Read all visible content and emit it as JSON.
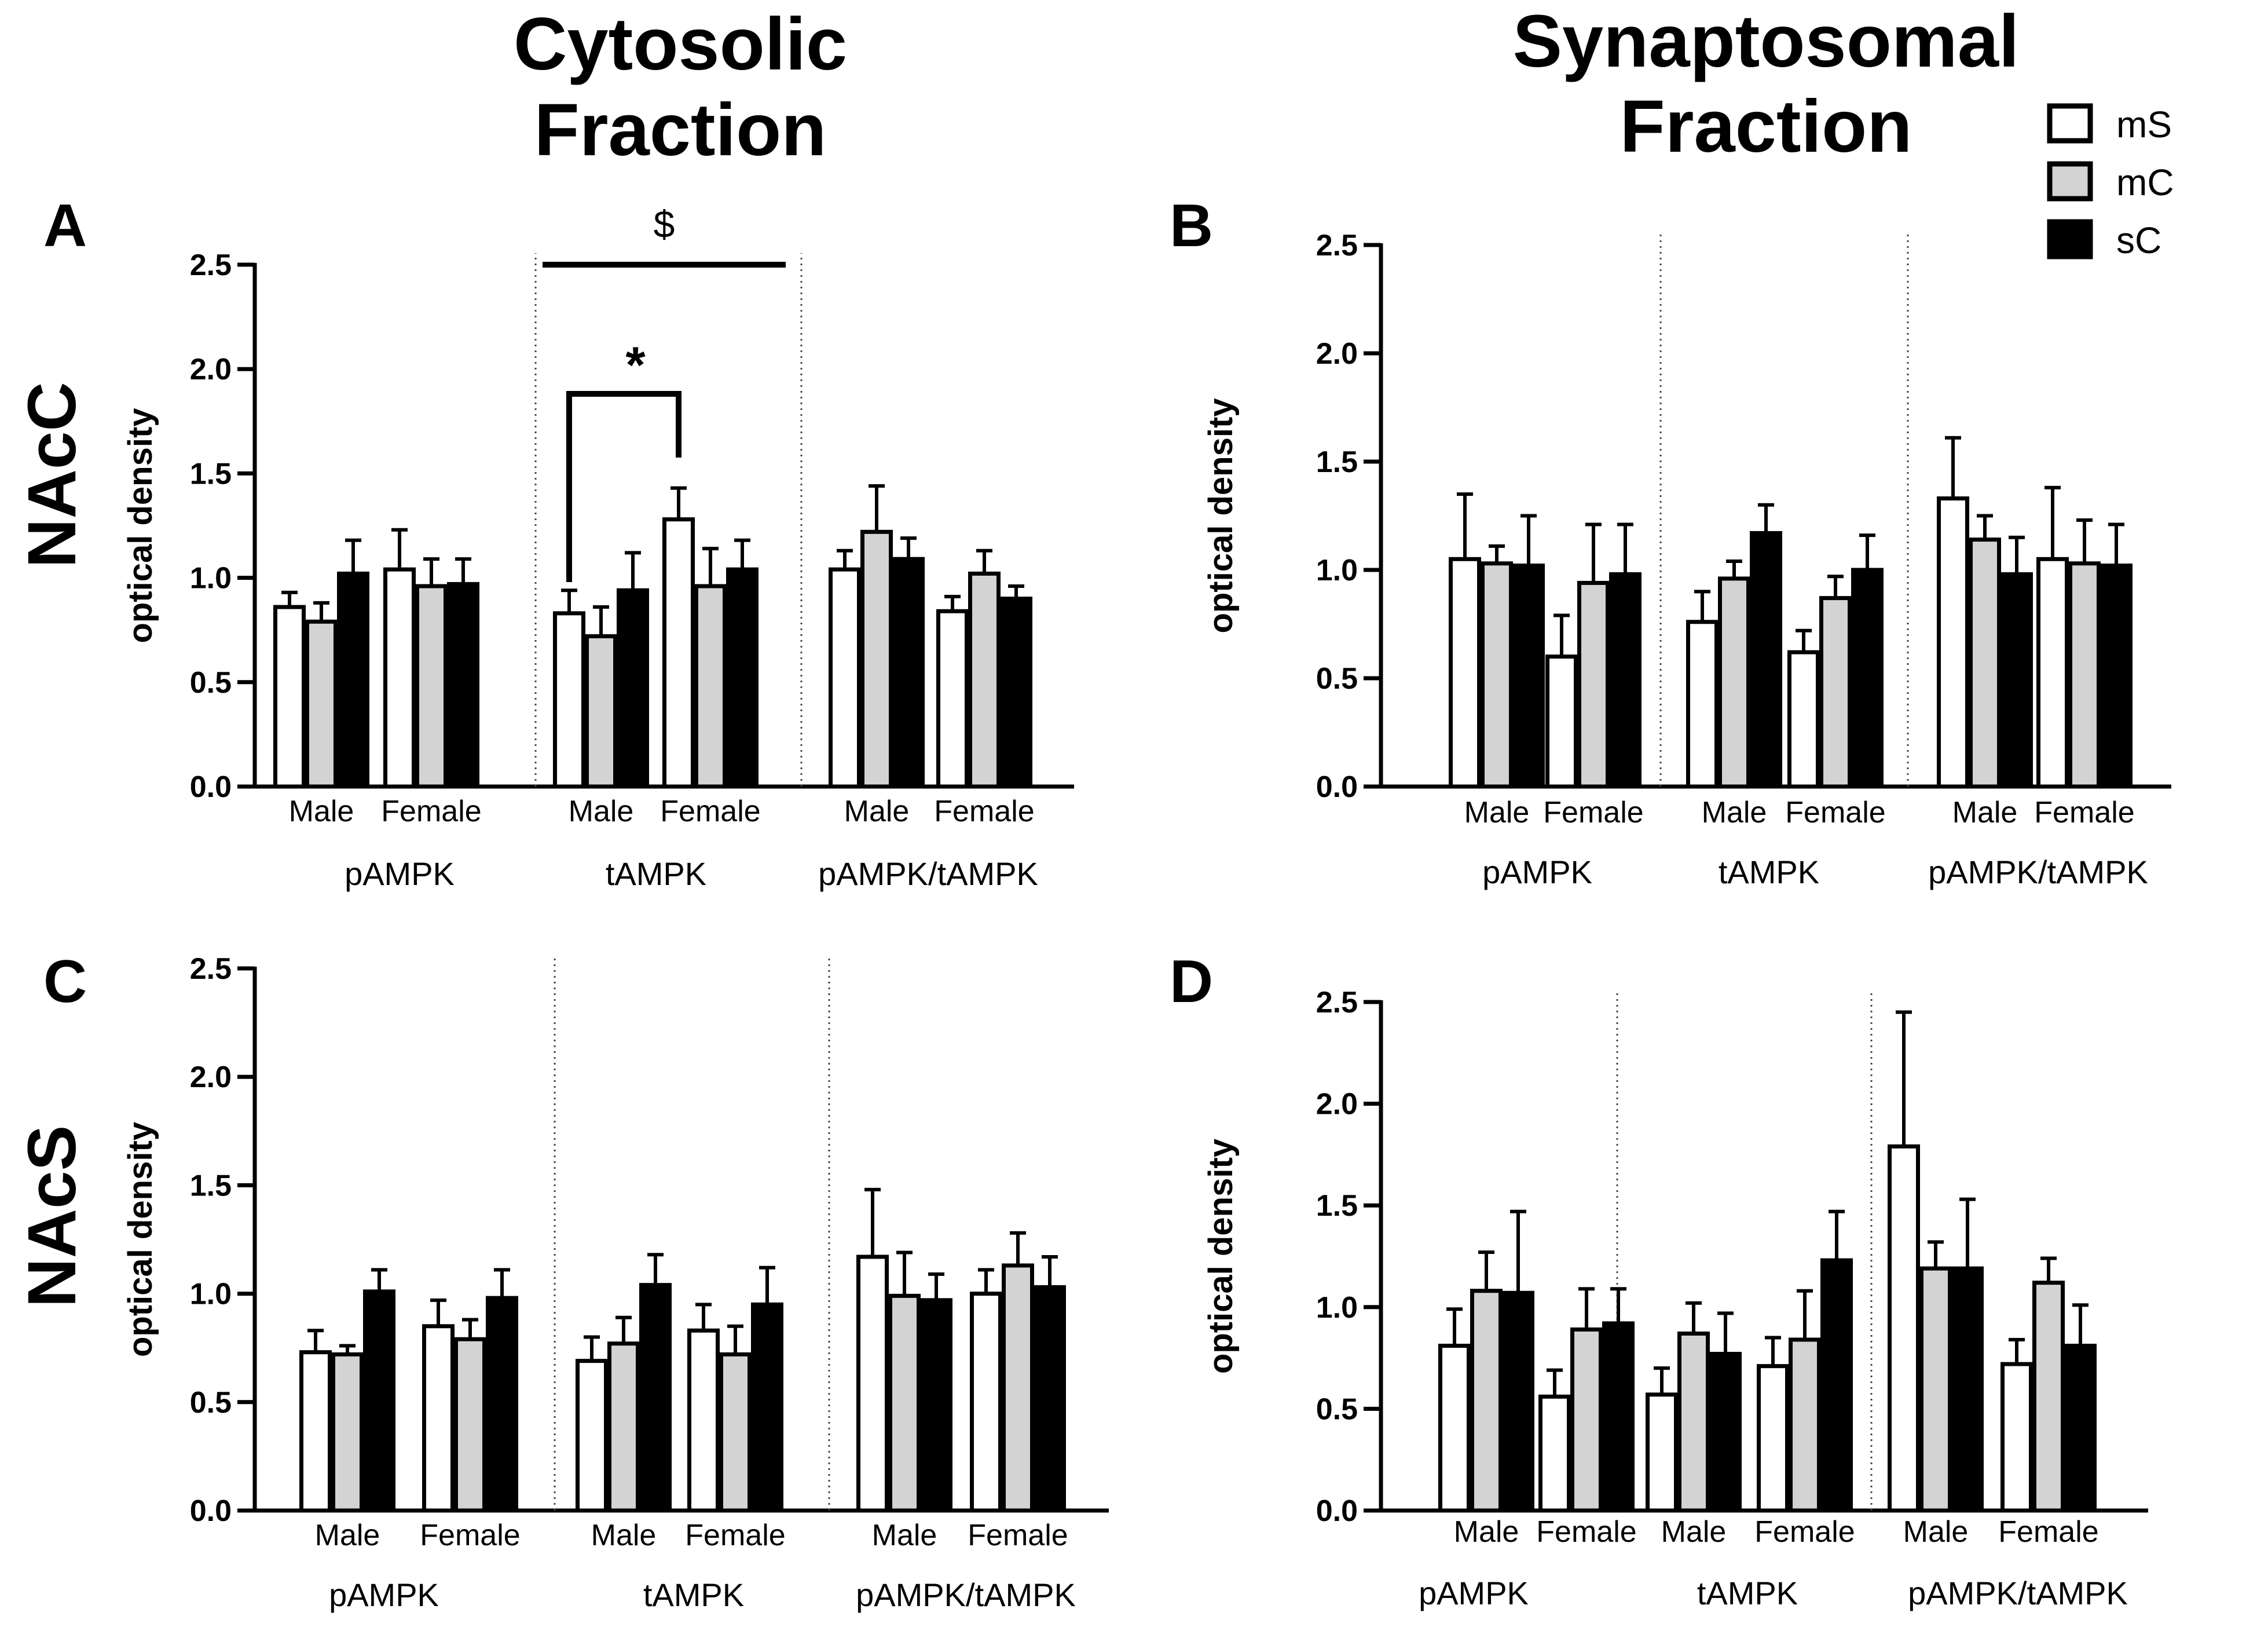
{
  "figure": {
    "column_titles": [
      [
        "Cytosolic",
        "Fraction"
      ],
      [
        "Synaptosomal",
        "Fraction"
      ]
    ],
    "row_labels": [
      "NAcC",
      "NAcS"
    ],
    "legend": [
      {
        "label": "mS",
        "color": "#ffffff"
      },
      {
        "label": "mC",
        "color": "#d3d3d3"
      },
      {
        "label": "sC",
        "color": "#000000"
      }
    ]
  },
  "chart_data": [
    {
      "panel": "A",
      "type": "bar",
      "ylabel": "optical density",
      "ylim": [
        0,
        2.5
      ],
      "yticks": [
        "0.0",
        "0.5",
        "1.0",
        "1.5",
        "2.0",
        "2.5"
      ],
      "groups": [
        "pAMPK",
        "tAMPK",
        "pAMPK/tAMPK"
      ],
      "categories": [
        "Male",
        "Female",
        "Male",
        "Female",
        "Male",
        "Female"
      ],
      "series": [
        {
          "name": "mS",
          "values": [
            0.86,
            1.04,
            0.83,
            1.28,
            1.04,
            0.84
          ],
          "errors": [
            0.07,
            0.19,
            0.11,
            0.15,
            0.09,
            0.07
          ]
        },
        {
          "name": "mC",
          "values": [
            0.79,
            0.96,
            0.72,
            0.96,
            1.22,
            1.02
          ],
          "errors": [
            0.09,
            0.13,
            0.14,
            0.18,
            0.22,
            0.11
          ]
        },
        {
          "name": "sC",
          "values": [
            1.02,
            0.97,
            0.94,
            1.04,
            1.09,
            0.9
          ],
          "errors": [
            0.16,
            0.12,
            0.18,
            0.14,
            0.1,
            0.06
          ]
        }
      ],
      "annotations": [
        {
          "type": "line",
          "from_category": 2,
          "to_category": 3,
          "label": "$"
        },
        {
          "type": "bracket",
          "from_bar": "Male-mS",
          "to_bar": "Female-mS",
          "label": "*"
        }
      ]
    },
    {
      "panel": "B",
      "type": "bar",
      "ylabel": "optical density",
      "ylim": [
        0,
        2.5
      ],
      "yticks": [
        "0.0",
        "0.5",
        "1.0",
        "1.5",
        "2.0",
        "2.5"
      ],
      "groups": [
        "pAMPK",
        "tAMPK",
        "pAMPK/tAMPK"
      ],
      "categories": [
        "Male",
        "Female",
        "Male",
        "Female",
        "Male",
        "Female"
      ],
      "series": [
        {
          "name": "mS",
          "values": [
            1.05,
            0.6,
            0.76,
            0.62,
            1.33,
            1.05
          ],
          "errors": [
            0.3,
            0.19,
            0.14,
            0.1,
            0.28,
            0.33
          ]
        },
        {
          "name": "mC",
          "values": [
            1.03,
            0.94,
            0.96,
            0.87,
            1.14,
            1.03
          ],
          "errors": [
            0.08,
            0.27,
            0.08,
            0.1,
            0.11,
            0.2
          ]
        },
        {
          "name": "sC",
          "values": [
            1.02,
            0.98,
            1.17,
            1.0,
            0.98,
            1.02
          ],
          "errors": [
            0.23,
            0.23,
            0.13,
            0.16,
            0.17,
            0.19
          ]
        }
      ]
    },
    {
      "panel": "C",
      "type": "bar",
      "ylabel": "optical density",
      "ylim": [
        0,
        2.5
      ],
      "yticks": [
        "0.0",
        "0.5",
        "1.0",
        "1.5",
        "2.0",
        "2.5"
      ],
      "groups": [
        "pAMPK",
        "tAMPK",
        "pAMPK/tAMPK"
      ],
      "categories": [
        "Male",
        "Female",
        "Male",
        "Female",
        "Male",
        "Female"
      ],
      "series": [
        {
          "name": "mS",
          "values": [
            0.73,
            0.85,
            0.69,
            0.83,
            1.17,
            1.0
          ],
          "errors": [
            0.1,
            0.12,
            0.11,
            0.12,
            0.31,
            0.11
          ]
        },
        {
          "name": "mC",
          "values": [
            0.72,
            0.79,
            0.77,
            0.72,
            0.99,
            1.13
          ],
          "errors": [
            0.04,
            0.09,
            0.12,
            0.13,
            0.2,
            0.15
          ]
        },
        {
          "name": "sC",
          "values": [
            1.01,
            0.98,
            1.04,
            0.95,
            0.97,
            1.03
          ],
          "errors": [
            0.1,
            0.13,
            0.14,
            0.17,
            0.12,
            0.14
          ]
        }
      ]
    },
    {
      "panel": "D",
      "type": "bar",
      "ylabel": "optical density",
      "ylim": [
        0,
        2.5
      ],
      "yticks": [
        "0.0",
        "0.5",
        "1.0",
        "1.5",
        "2.0",
        "2.5"
      ],
      "groups": [
        "pAMPK",
        "tAMPK",
        "pAMPK/tAMPK"
      ],
      "categories": [
        "Male",
        "Female",
        "Male",
        "Female",
        "Male",
        "Female"
      ],
      "series": [
        {
          "name": "mS",
          "values": [
            0.81,
            0.56,
            0.57,
            0.71,
            1.79,
            0.72
          ],
          "errors": [
            0.18,
            0.13,
            0.13,
            0.14,
            0.66,
            0.12
          ]
        },
        {
          "name": "mC",
          "values": [
            1.08,
            0.89,
            0.87,
            0.84,
            1.19,
            1.12
          ],
          "errors": [
            0.19,
            0.2,
            0.15,
            0.24,
            0.13,
            0.12
          ]
        },
        {
          "name": "sC",
          "values": [
            1.07,
            0.92,
            0.77,
            1.23,
            1.19,
            0.81
          ],
          "errors": [
            0.4,
            0.17,
            0.2,
            0.24,
            0.34,
            0.2
          ]
        }
      ]
    }
  ]
}
